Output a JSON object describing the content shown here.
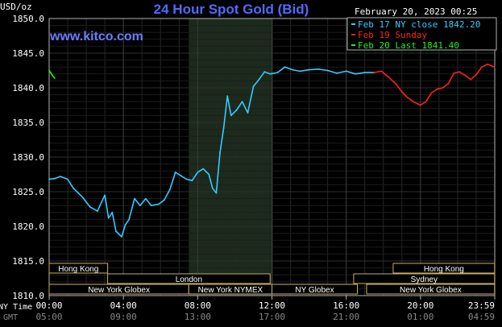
{
  "chart_data": {
    "type": "line",
    "title": "24 Hour Spot Gold (Bid)",
    "site": "www.kitco.com",
    "date_label": "February 20, 2023 00:25",
    "ylabel": "USD/oz",
    "ylim": [
      1810.0,
      1850.0
    ],
    "y_ticks": [
      "1850.0",
      "1845.0",
      "1840.0",
      "1835.0",
      "1830.0",
      "1825.0",
      "1820.0",
      "1815.0",
      "1810.0"
    ],
    "x_ticks": [
      "00:00",
      "04:00",
      "08:00",
      "12:00",
      "16:00",
      "20:00",
      "23:59"
    ],
    "gmt_ticks": [
      "05:00",
      "09:00",
      "13:00",
      "17:00",
      "21:00",
      "01:00",
      "04:59"
    ],
    "x_label_ny": "NY Time",
    "x_label_gmt": "GMT",
    "legend": [
      {
        "label": "Feb 17 NY close 1842.20",
        "color": "#33ccff"
      },
      {
        "label": "Feb 19 Sunday",
        "color": "#ff2020"
      },
      {
        "label": "Feb 20 Last 1841.40",
        "color": "#22ee22"
      }
    ],
    "series": [
      {
        "name": "Feb 17 NY close 1842.20",
        "color": "#33ccff",
        "x": [
          0.0,
          0.3,
          0.6,
          1.0,
          1.3,
          1.8,
          2.2,
          2.6,
          3.0,
          3.2,
          3.4,
          3.6,
          3.9,
          4.1,
          4.3,
          4.6,
          4.9,
          5.2,
          5.5,
          5.9,
          6.2,
          6.5,
          6.8,
          7.1,
          7.4,
          7.7,
          8.0,
          8.3,
          8.6,
          8.8,
          9.0,
          9.2,
          9.4,
          9.6,
          9.8,
          10.1,
          10.4,
          10.7,
          11.0,
          11.3,
          11.6,
          11.9,
          12.3,
          12.7,
          13.1,
          13.5,
          14.0,
          14.5,
          15.0,
          15.5,
          16.0,
          16.5,
          17.0,
          17.5
        ],
        "values": [
          1826.8,
          1826.9,
          1827.2,
          1826.8,
          1825.5,
          1824.2,
          1822.8,
          1822.2,
          1824.5,
          1821.2,
          1822.0,
          1819.3,
          1818.5,
          1820.2,
          1821.0,
          1824.0,
          1823.0,
          1824.0,
          1823.0,
          1823.2,
          1823.8,
          1825.3,
          1827.8,
          1827.3,
          1826.8,
          1826.6,
          1827.8,
          1828.3,
          1827.5,
          1825.5,
          1824.8,
          1830.6,
          1834.2,
          1838.8,
          1836.0,
          1836.8,
          1838.0,
          1836.4,
          1840.2,
          1841.2,
          1842.3,
          1842.0,
          1842.2,
          1843.0,
          1842.6,
          1842.4,
          1842.6,
          1842.7,
          1842.5,
          1842.1,
          1842.4,
          1842.0,
          1842.2,
          1842.2
        ]
      },
      {
        "name": "Feb 19 Sunday",
        "color": "#ff2020",
        "x": [
          17.5,
          17.9,
          18.3,
          18.7,
          19.0,
          19.3,
          19.6,
          20.0,
          20.3,
          20.6,
          20.9,
          21.2,
          21.5,
          21.8,
          22.1,
          22.4,
          22.7,
          23.0,
          23.3,
          23.6,
          23.99
        ],
        "values": [
          1842.2,
          1842.4,
          1841.5,
          1840.5,
          1839.4,
          1838.6,
          1838.0,
          1837.5,
          1838.0,
          1839.3,
          1839.8,
          1840.0,
          1840.6,
          1842.1,
          1842.3,
          1841.8,
          1841.2,
          1841.9,
          1843.0,
          1843.4,
          1843.0
        ]
      },
      {
        "name": "Feb 20 Last 1841.40",
        "color": "#22ee22",
        "x": [
          0.0,
          0.1,
          0.2,
          0.3
        ],
        "values": [
          1842.5,
          1842.1,
          1841.7,
          1841.4
        ]
      }
    ],
    "sessions": [
      {
        "label": "Hong Kong",
        "row": 0,
        "start": 0.0,
        "end": 3.15
      },
      {
        "label": "Hong Kong",
        "row": 0,
        "start": 18.53,
        "end": 23.99
      },
      {
        "label": "London",
        "row": 1,
        "start": 3.15,
        "end": 11.9
      },
      {
        "label": "Sydney",
        "row": 1,
        "start": 16.4,
        "end": 23.99
      },
      {
        "label": "New York Globex",
        "row": 2,
        "start": 0.0,
        "end": 7.52
      },
      {
        "label": "New York NYMEX",
        "row": 2,
        "start": 7.52,
        "end": 12.0
      },
      {
        "label": "NY Globex",
        "row": 2,
        "start": 12.0,
        "end": 16.6
      },
      {
        "label": "New York Globex",
        "row": 2,
        "start": 17.1,
        "end": 23.99
      }
    ],
    "highlight_range": [
      7.52,
      12.05
    ]
  }
}
